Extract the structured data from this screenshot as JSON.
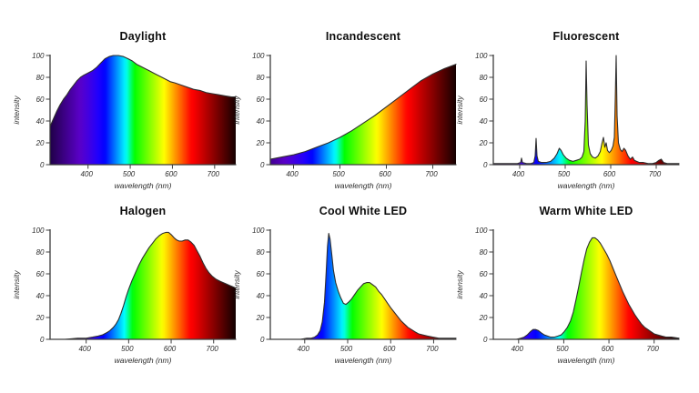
{
  "figure": {
    "background": "#ffffff",
    "grid": false,
    "legend": "none",
    "style": {
      "axis_color": "#3d3d3d",
      "tick_text_color": "#2b2b2b",
      "title_color": "#0d0d0d",
      "curve_outline_color": "#2e2e2e",
      "fill": "visible-spectrum-gradient"
    }
  },
  "chart_data": [
    {
      "id": "daylight",
      "type": "area",
      "title": "Daylight",
      "xlabel": "wavelength (nm)",
      "ylabel": "intensity",
      "xlim": [
        310,
        750
      ],
      "ylim": [
        0,
        100
      ],
      "x_ticks": [
        400,
        500,
        600,
        700
      ],
      "y_ticks": [
        0,
        20,
        40,
        60,
        80,
        100
      ],
      "points": [
        [
          310,
          35
        ],
        [
          318,
          42
        ],
        [
          326,
          49
        ],
        [
          334,
          55
        ],
        [
          342,
          60
        ],
        [
          350,
          64
        ],
        [
          358,
          69
        ],
        [
          366,
          73
        ],
        [
          374,
          77
        ],
        [
          382,
          80
        ],
        [
          390,
          82
        ],
        [
          400,
          84
        ],
        [
          410,
          86
        ],
        [
          420,
          89
        ],
        [
          430,
          93
        ],
        [
          440,
          97
        ],
        [
          450,
          99
        ],
        [
          460,
          100
        ],
        [
          472,
          100
        ],
        [
          484,
          99
        ],
        [
          495,
          97
        ],
        [
          505,
          95
        ],
        [
          515,
          92
        ],
        [
          525,
          90
        ],
        [
          535,
          88
        ],
        [
          545,
          86
        ],
        [
          555,
          84
        ],
        [
          565,
          82
        ],
        [
          575,
          80
        ],
        [
          585,
          78
        ],
        [
          595,
          76
        ],
        [
          605,
          75
        ],
        [
          620,
          73
        ],
        [
          635,
          71
        ],
        [
          650,
          69
        ],
        [
          665,
          68
        ],
        [
          680,
          66
        ],
        [
          695,
          65
        ],
        [
          710,
          64
        ],
        [
          725,
          63
        ],
        [
          740,
          62
        ],
        [
          750,
          62
        ]
      ]
    },
    {
      "id": "incandescent",
      "type": "area",
      "title": "Incandescent",
      "xlabel": "wavelength (nm)",
      "ylabel": "intensity",
      "xlim": [
        350,
        750
      ],
      "ylim": [
        0,
        100
      ],
      "x_ticks": [
        400,
        500,
        600,
        700
      ],
      "y_ticks": [
        0,
        20,
        40,
        60,
        80,
        100
      ],
      "points": [
        [
          350,
          5
        ],
        [
          375,
          7
        ],
        [
          400,
          9
        ],
        [
          425,
          12
        ],
        [
          450,
          16
        ],
        [
          475,
          20
        ],
        [
          500,
          25
        ],
        [
          525,
          31
        ],
        [
          550,
          38
        ],
        [
          575,
          45
        ],
        [
          600,
          53
        ],
        [
          625,
          61
        ],
        [
          650,
          69
        ],
        [
          675,
          77
        ],
        [
          700,
          83
        ],
        [
          725,
          88
        ],
        [
          750,
          92
        ]
      ]
    },
    {
      "id": "fluorescent",
      "type": "area",
      "title": "Fluorescent",
      "xlabel": "wavelength (nm)",
      "ylabel": "intensity",
      "xlim": [
        342,
        750
      ],
      "ylim": [
        0,
        100
      ],
      "x_ticks": [
        400,
        500,
        600,
        700
      ],
      "y_ticks": [
        0,
        20,
        40,
        60,
        80,
        100
      ],
      "points": [
        [
          342,
          1
        ],
        [
          370,
          1
        ],
        [
          395,
          1
        ],
        [
          402,
          2
        ],
        [
          404,
          6
        ],
        [
          406,
          2
        ],
        [
          415,
          1
        ],
        [
          425,
          1
        ],
        [
          431,
          2
        ],
        [
          434,
          8
        ],
        [
          436,
          24
        ],
        [
          438,
          8
        ],
        [
          441,
          3
        ],
        [
          448,
          2
        ],
        [
          458,
          2
        ],
        [
          468,
          3
        ],
        [
          476,
          6
        ],
        [
          482,
          10
        ],
        [
          487,
          15
        ],
        [
          491,
          13
        ],
        [
          496,
          9
        ],
        [
          502,
          6
        ],
        [
          509,
          4
        ],
        [
          517,
          3
        ],
        [
          525,
          4
        ],
        [
          532,
          5
        ],
        [
          537,
          7
        ],
        [
          541,
          12
        ],
        [
          544,
          40
        ],
        [
          546,
          95
        ],
        [
          548,
          55
        ],
        [
          551,
          18
        ],
        [
          555,
          10
        ],
        [
          560,
          7
        ],
        [
          566,
          6
        ],
        [
          572,
          8
        ],
        [
          577,
          12
        ],
        [
          581,
          20
        ],
        [
          584,
          25
        ],
        [
          587,
          16
        ],
        [
          590,
          20
        ],
        [
          593,
          13
        ],
        [
          597,
          11
        ],
        [
          601,
          13
        ],
        [
          605,
          17
        ],
        [
          608,
          25
        ],
        [
          610,
          60
        ],
        [
          612,
          100
        ],
        [
          614,
          45
        ],
        [
          617,
          20
        ],
        [
          621,
          14
        ],
        [
          625,
          12
        ],
        [
          629,
          15
        ],
        [
          633,
          13
        ],
        [
          638,
          8
        ],
        [
          643,
          5
        ],
        [
          648,
          7
        ],
        [
          652,
          4
        ],
        [
          657,
          3
        ],
        [
          663,
          2
        ],
        [
          672,
          2
        ],
        [
          682,
          1
        ],
        [
          692,
          1
        ],
        [
          700,
          2
        ],
        [
          706,
          4
        ],
        [
          711,
          5
        ],
        [
          716,
          2
        ],
        [
          724,
          1
        ],
        [
          736,
          1
        ],
        [
          750,
          1
        ]
      ]
    },
    {
      "id": "halogen",
      "type": "area",
      "title": "Halogen",
      "xlabel": "wavelength (nm)",
      "ylabel": "intensity",
      "xlim": [
        315,
        752
      ],
      "ylim": [
        0,
        100
      ],
      "x_ticks": [
        400,
        500,
        600,
        700
      ],
      "y_ticks": [
        0,
        20,
        40,
        60,
        80,
        100
      ],
      "points": [
        [
          315,
          0
        ],
        [
          350,
          0
        ],
        [
          380,
          1
        ],
        [
          400,
          1
        ],
        [
          415,
          2
        ],
        [
          428,
          3
        ],
        [
          438,
          4
        ],
        [
          448,
          6
        ],
        [
          456,
          8
        ],
        [
          464,
          11
        ],
        [
          470,
          14
        ],
        [
          476,
          18
        ],
        [
          482,
          24
        ],
        [
          488,
          31
        ],
        [
          494,
          39
        ],
        [
          500,
          46
        ],
        [
          508,
          54
        ],
        [
          516,
          61
        ],
        [
          524,
          68
        ],
        [
          532,
          74
        ],
        [
          540,
          79
        ],
        [
          548,
          84
        ],
        [
          556,
          88
        ],
        [
          564,
          92
        ],
        [
          572,
          95
        ],
        [
          580,
          97
        ],
        [
          588,
          98
        ],
        [
          594,
          98
        ],
        [
          600,
          96
        ],
        [
          607,
          93
        ],
        [
          613,
          91
        ],
        [
          619,
          90
        ],
        [
          626,
          90
        ],
        [
          633,
          91
        ],
        [
          640,
          91
        ],
        [
          647,
          89
        ],
        [
          654,
          86
        ],
        [
          661,
          81
        ],
        [
          668,
          76
        ],
        [
          675,
          70
        ],
        [
          682,
          65
        ],
        [
          689,
          61
        ],
        [
          696,
          58
        ],
        [
          706,
          55
        ],
        [
          716,
          53
        ],
        [
          728,
          51
        ],
        [
          740,
          49
        ],
        [
          752,
          47
        ]
      ]
    },
    {
      "id": "cool-white-led",
      "type": "area",
      "title": "Cool White LED",
      "xlabel": "wavelength (nm)",
      "ylabel": "intensity",
      "xlim": [
        320,
        752
      ],
      "ylim": [
        0,
        100
      ],
      "x_ticks": [
        400,
        500,
        600,
        700
      ],
      "y_ticks": [
        0,
        20,
        40,
        60,
        80,
        100
      ],
      "points": [
        [
          320,
          0
        ],
        [
          360,
          0
        ],
        [
          390,
          0
        ],
        [
          405,
          1
        ],
        [
          415,
          1
        ],
        [
          423,
          2
        ],
        [
          430,
          4
        ],
        [
          436,
          8
        ],
        [
          441,
          16
        ],
        [
          446,
          34
        ],
        [
          450,
          62
        ],
        [
          453,
          85
        ],
        [
          456,
          97
        ],
        [
          459,
          92
        ],
        [
          463,
          78
        ],
        [
          467,
          63
        ],
        [
          472,
          52
        ],
        [
          478,
          44
        ],
        [
          484,
          38
        ],
        [
          490,
          33
        ],
        [
          496,
          32
        ],
        [
          502,
          34
        ],
        [
          509,
          37
        ],
        [
          516,
          41
        ],
        [
          523,
          45
        ],
        [
          530,
          48
        ],
        [
          537,
          51
        ],
        [
          544,
          52
        ],
        [
          551,
          52
        ],
        [
          558,
          50
        ],
        [
          565,
          48
        ],
        [
          572,
          44
        ],
        [
          579,
          41
        ],
        [
          586,
          37
        ],
        [
          593,
          33
        ],
        [
          600,
          29
        ],
        [
          608,
          25
        ],
        [
          616,
          21
        ],
        [
          624,
          17
        ],
        [
          632,
          14
        ],
        [
          640,
          11
        ],
        [
          648,
          9
        ],
        [
          656,
          7
        ],
        [
          665,
          5
        ],
        [
          675,
          4
        ],
        [
          686,
          3
        ],
        [
          698,
          2
        ],
        [
          712,
          1
        ],
        [
          726,
          1
        ],
        [
          740,
          1
        ],
        [
          752,
          1
        ]
      ]
    },
    {
      "id": "warm-white-led",
      "type": "area",
      "title": "Warm White LED",
      "xlabel": "wavelength (nm)",
      "ylabel": "intensity",
      "xlim": [
        344,
        755
      ],
      "ylim": [
        0,
        100
      ],
      "x_ticks": [
        400,
        500,
        600,
        700
      ],
      "y_ticks": [
        0,
        20,
        40,
        60,
        80,
        100
      ],
      "points": [
        [
          344,
          0
        ],
        [
          375,
          0
        ],
        [
          395,
          0
        ],
        [
          405,
          1
        ],
        [
          412,
          2
        ],
        [
          419,
          4
        ],
        [
          426,
          7
        ],
        [
          432,
          9
        ],
        [
          438,
          9
        ],
        [
          444,
          8
        ],
        [
          450,
          6
        ],
        [
          457,
          4
        ],
        [
          464,
          3
        ],
        [
          471,
          2
        ],
        [
          479,
          2
        ],
        [
          487,
          3
        ],
        [
          494,
          4
        ],
        [
          501,
          7
        ],
        [
          508,
          11
        ],
        [
          515,
          17
        ],
        [
          521,
          25
        ],
        [
          527,
          36
        ],
        [
          533,
          48
        ],
        [
          539,
          61
        ],
        [
          545,
          73
        ],
        [
          551,
          83
        ],
        [
          557,
          89
        ],
        [
          563,
          93
        ],
        [
          569,
          93
        ],
        [
          575,
          91
        ],
        [
          581,
          88
        ],
        [
          588,
          83
        ],
        [
          595,
          78
        ],
        [
          602,
          72
        ],
        [
          609,
          65
        ],
        [
          616,
          58
        ],
        [
          623,
          51
        ],
        [
          630,
          44
        ],
        [
          637,
          38
        ],
        [
          644,
          32
        ],
        [
          651,
          27
        ],
        [
          658,
          22
        ],
        [
          665,
          18
        ],
        [
          672,
          14
        ],
        [
          679,
          11
        ],
        [
          686,
          9
        ],
        [
          693,
          7
        ],
        [
          700,
          5
        ],
        [
          708,
          4
        ],
        [
          717,
          3
        ],
        [
          727,
          2
        ],
        [
          738,
          2
        ],
        [
          755,
          1
        ]
      ]
    }
  ]
}
